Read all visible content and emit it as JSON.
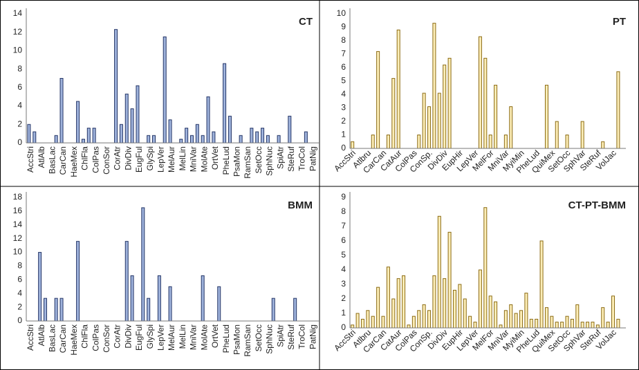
{
  "chart_data": [
    {
      "type": "bar",
      "title": "CT",
      "categories": [
        "AccStri",
        null,
        "AtlAlb",
        null,
        "BasLac",
        null,
        "CarCan",
        null,
        "HaeMex",
        null,
        "ChlFla",
        null,
        "ColPas",
        null,
        "ConSor",
        null,
        "CorAtr",
        null,
        "DivDiv",
        null,
        "EugFul",
        null,
        "GlySpi",
        null,
        "LepVer",
        null,
        "MelAur",
        null,
        "MelLin",
        null,
        "MniVar",
        null,
        "MolAte",
        null,
        "OrtVet",
        null,
        "PheLud",
        null,
        "PsaMon",
        null,
        "RamSan",
        null,
        "SetOcc",
        null,
        "SphNuc",
        null,
        "SpiAtr",
        null,
        "SteRuf",
        null,
        "TroCol",
        null,
        "PatNig",
        null
      ],
      "values": [
        2,
        1.2,
        0,
        0,
        0,
        0.8,
        7,
        0,
        0,
        4.5,
        0.4,
        1.6,
        1.6,
        0,
        0,
        0,
        12.3,
        2,
        5.3,
        3.7,
        6.2,
        0,
        0.8,
        0.8,
        0,
        11.5,
        2.5,
        0,
        0.4,
        1.6,
        0.8,
        2,
        0.8,
        5,
        1.2,
        0,
        8.6,
        2.9,
        0,
        0.8,
        0,
        1.6,
        1.2,
        1.6,
        0.8,
        0,
        0.8,
        0,
        2.9,
        0,
        0,
        1.2,
        0,
        0
      ],
      "color": "#9fb3dc",
      "edge_color": "#243566",
      "ylim": [
        0,
        14
      ],
      "yticks": [
        0,
        2,
        4,
        6,
        8,
        10,
        12,
        14
      ]
    },
    {
      "type": "bar",
      "title": "PT",
      "categories": [
        "AccStri",
        null,
        null,
        "Atlbru",
        null,
        null,
        "CarCan",
        null,
        null,
        "CatAur",
        null,
        null,
        "ColPas",
        null,
        null,
        "ConSp.",
        null,
        null,
        "DivDiv",
        null,
        null,
        "EupHir",
        null,
        null,
        "LepVer",
        null,
        null,
        "MelFor",
        null,
        null,
        "MniVar",
        null,
        null,
        "MyiMin",
        null,
        null,
        "PheLud",
        null,
        null,
        "QuiMex",
        null,
        null,
        "SetOcc",
        null,
        null,
        "SphVar",
        null,
        null,
        "SteRuf",
        null,
        null,
        "VolJac",
        null,
        null
      ],
      "values": [
        0.5,
        0,
        0,
        0,
        1,
        7.2,
        0,
        1,
        5.2,
        8.8,
        0,
        0,
        0,
        1,
        4.1,
        3.1,
        9.3,
        4.1,
        6.2,
        6.7,
        0,
        0,
        0,
        0,
        0,
        8.3,
        6.7,
        1,
        4.7,
        0,
        1,
        3.1,
        0,
        0,
        0,
        0,
        0,
        0,
        4.7,
        0,
        2,
        0,
        1,
        0,
        0,
        2,
        0,
        0,
        0,
        0.5,
        0,
        0,
        5.7,
        0
      ],
      "color": "#fdeeb8",
      "edge_color": "#8a6a12",
      "ylim": [
        0,
        10
      ],
      "yticks": [
        0,
        1,
        2,
        3,
        4,
        5,
        6,
        7,
        8,
        9,
        10
      ]
    },
    {
      "type": "bar",
      "title": "BMM",
      "categories": [
        "AccStri",
        null,
        "AtlAlb",
        null,
        "BasLac",
        null,
        "CarCan",
        null,
        "HaeMex",
        null,
        "ChlFla",
        null,
        "ColPas",
        null,
        "ConSor",
        null,
        "CorAtr",
        null,
        "DivDiv",
        null,
        "EugFul",
        null,
        "GlySpi",
        null,
        "LepVer",
        null,
        "MelAur",
        null,
        "MelLin",
        null,
        "MniVar",
        null,
        "MolAte",
        null,
        "OrtVet",
        null,
        "PheLud",
        null,
        "PsaMon",
        null,
        "RamSan",
        null,
        "SetOcc",
        null,
        "SphNuc",
        null,
        "SpiAtr",
        null,
        "SteRuf",
        null,
        "TroCol",
        null,
        "PatNig",
        null
      ],
      "values": [
        0,
        0,
        10,
        3.3,
        0,
        3.3,
        3.3,
        0,
        0,
        11.6,
        0,
        0,
        0,
        0,
        0,
        0,
        0,
        0,
        11.6,
        6.6,
        0,
        16.5,
        3.3,
        0,
        6.6,
        0,
        5,
        0,
        0,
        0,
        0,
        0,
        6.6,
        0,
        0,
        5,
        0,
        0,
        0,
        0,
        0,
        0,
        0,
        0,
        0,
        3.3,
        0,
        0,
        0,
        3.3,
        0,
        0,
        0,
        0
      ],
      "color": "#9fb3dc",
      "edge_color": "#243566",
      "ylim": [
        0,
        18
      ],
      "yticks": [
        0,
        2,
        4,
        6,
        8,
        10,
        12,
        14,
        16,
        18
      ]
    },
    {
      "type": "bar",
      "title": "CT-PT-BMM",
      "categories": [
        "AccStri",
        null,
        null,
        "Atlbru",
        null,
        null,
        "CarCan",
        null,
        null,
        "CatAur",
        null,
        null,
        "ColPas",
        null,
        null,
        "ConSp.",
        null,
        null,
        "DivDiv",
        null,
        null,
        "EupHir",
        null,
        null,
        "LepVer",
        null,
        null,
        "MelFor",
        null,
        null,
        "MniVar",
        null,
        null,
        "MyiMin",
        null,
        null,
        "PheLud",
        null,
        null,
        "QuiMex",
        null,
        null,
        "SetOcc",
        null,
        null,
        "SphVar",
        null,
        null,
        "SteRuf",
        null,
        null,
        "VolJac",
        null,
        null
      ],
      "values": [
        0.2,
        1,
        0.6,
        1.2,
        0.8,
        2.8,
        0.8,
        4.2,
        2,
        3.4,
        3.6,
        0.2,
        0.8,
        1.2,
        1.6,
        1.2,
        3.6,
        7.7,
        3.4,
        6.6,
        2.6,
        3,
        2,
        0.8,
        0.4,
        4,
        8.3,
        2.2,
        1.8,
        0.2,
        1.2,
        1.6,
        1,
        1.2,
        2.4,
        0.6,
        0.6,
        6,
        1.4,
        0.8,
        0.4,
        0.4,
        0.8,
        0.6,
        1.6,
        0.4,
        0.4,
        0.4,
        0.2,
        1.4,
        0.4,
        2.2,
        0.6,
        0
      ],
      "color": "#fdeeb8",
      "edge_color": "#8a6a12",
      "ylim": [
        0,
        9
      ],
      "yticks": [
        0,
        1,
        2,
        3,
        4,
        5,
        6,
        7,
        8,
        9
      ]
    }
  ]
}
